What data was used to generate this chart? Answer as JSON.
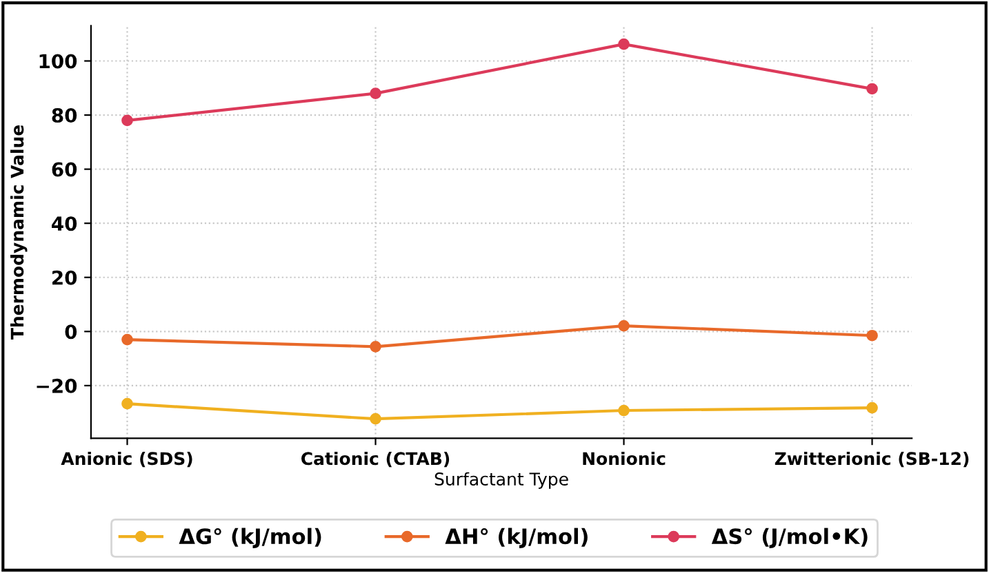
{
  "chart_data": {
    "type": "line",
    "xlabel": "Surfactant Type",
    "ylabel": "Thermodynamic Value",
    "categories": [
      "Anionic (SDS)",
      "Cationic (CTAB)",
      "Nonionic",
      "Zwitterionic (SB-12)"
    ],
    "series": [
      {
        "name": "ΔG° (kJ/mol)",
        "color": "#f0b020",
        "values": [
          -26.7,
          -32.3,
          -29.2,
          -28.2
        ]
      },
      {
        "name": "ΔH° (kJ/mol)",
        "color": "#e8692a",
        "values": [
          -3,
          -5.6,
          2.1,
          -1.5
        ]
      },
      {
        "name": "ΔS° (J/mol•K)",
        "color": "#dc3a5a",
        "values": [
          78,
          88,
          106.2,
          89.7
        ]
      }
    ],
    "ylim": [
      -39.5,
      113
    ],
    "yticks": [
      {
        "value": -20,
        "label": "−20"
      },
      0,
      20,
      40,
      60,
      80,
      100
    ],
    "grid": true,
    "legend": "bottom",
    "marker": "circle",
    "line_style": "solid"
  }
}
